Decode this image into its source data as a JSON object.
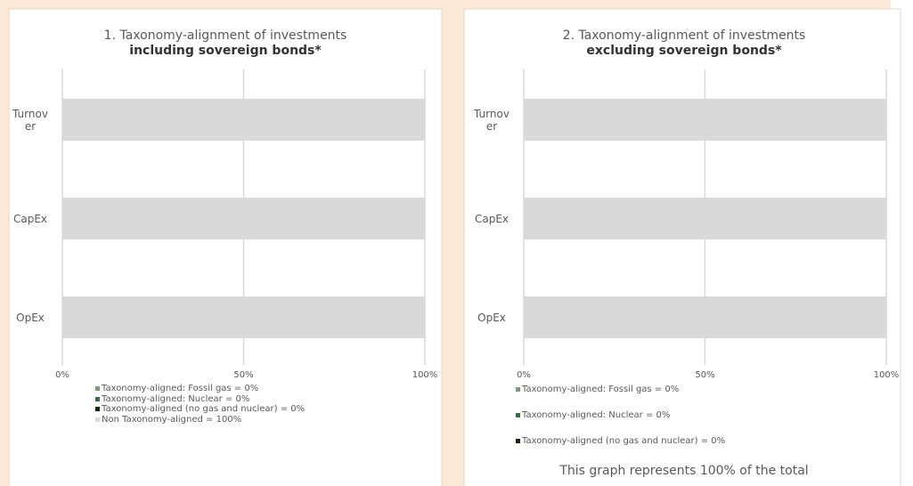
{
  "chart_data": [
    {
      "type": "stacked-bar-horizontal",
      "title": "1. Taxonomy-alignment of investments",
      "subtitle": "including sovereign bonds*",
      "categories": [
        "Turnover",
        "CapEx",
        "OpEx"
      ],
      "series": [
        {
          "name": "Taxonomy-aligned: Fossil gas = 0%",
          "color": "#809a80",
          "values": [
            0,
            0,
            0
          ]
        },
        {
          "name": "Taxonomy-aligned: Nuclear = 0%",
          "color": "#3d6b47",
          "values": [
            0,
            0,
            0
          ]
        },
        {
          "name": "Taxonomy-aligned (no gas and nuclear) = 0%",
          "color": "#0a2a0a",
          "values": [
            0,
            0,
            0
          ]
        },
        {
          "name": "Non Taxonomy-aligned = 100%",
          "color": "#d9d9d9",
          "values": [
            100,
            100,
            100
          ]
        }
      ],
      "xlim": [
        0,
        100
      ],
      "xticks": [
        {
          "value": 0,
          "label": "0%"
        },
        {
          "value": 50,
          "label": "50%"
        },
        {
          "value": 100,
          "label": "100%"
        }
      ],
      "grid": true
    },
    {
      "type": "stacked-bar-horizontal",
      "title": "2. Taxonomy-alignment of investments",
      "subtitle": "excluding sovereign bonds*",
      "categories": [
        "Turnover",
        "CapEx",
        "OpEx"
      ],
      "series": [
        {
          "name": "Taxonomy-aligned: Fossil gas = 0%",
          "color": "#809a80",
          "values": [
            0,
            0,
            0
          ]
        },
        {
          "name": "Taxonomy-aligned: Nuclear = 0%",
          "color": "#3d6b47",
          "values": [
            0,
            0,
            0
          ]
        },
        {
          "name": "Taxonomy-aligned (no gas and nuclear) = 0%",
          "color": "#0a2a0a",
          "values": [
            0,
            0,
            0
          ]
        },
        {
          "color": "#d9d9d9",
          "values": [
            100,
            100,
            100
          ]
        }
      ],
      "xlim": [
        0,
        100
      ],
      "xticks": [
        {
          "value": 0,
          "label": "0%"
        },
        {
          "value": 50,
          "label": "50%"
        },
        {
          "value": 100,
          "label": "100%"
        }
      ],
      "grid": true,
      "note": "This graph represents 100% of the total"
    }
  ]
}
